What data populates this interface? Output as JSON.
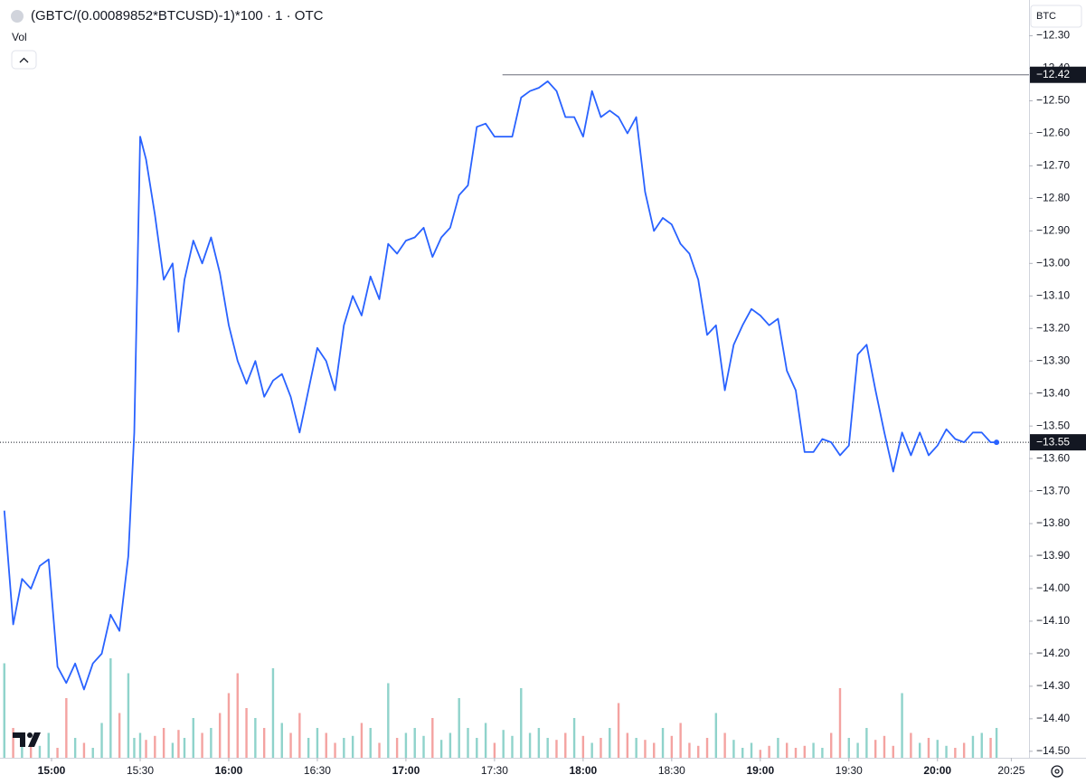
{
  "chart_data": {
    "type": "line",
    "title": "(GBTC/(0.00089852*BTCUSD)-1)*100 · 1 · OTC",
    "volume_label": "Vol",
    "currency": "BTC",
    "color": "#2962ff",
    "x": [
      "14:44",
      "14:47",
      "14:50",
      "14:53",
      "14:56",
      "14:59",
      "15:02",
      "15:05",
      "15:08",
      "15:11",
      "15:14",
      "15:17",
      "15:20",
      "15:23",
      "15:26",
      "15:28",
      "15:30",
      "15:32",
      "15:35",
      "15:38",
      "15:41",
      "15:43",
      "15:45",
      "15:48",
      "15:51",
      "15:54",
      "15:57",
      "16:00",
      "16:03",
      "16:06",
      "16:09",
      "16:12",
      "16:15",
      "16:18",
      "16:21",
      "16:24",
      "16:27",
      "16:30",
      "16:33",
      "16:36",
      "16:39",
      "16:42",
      "16:45",
      "16:48",
      "16:51",
      "16:54",
      "16:57",
      "17:00",
      "17:03",
      "17:06",
      "17:09",
      "17:12",
      "17:15",
      "17:18",
      "17:21",
      "17:24",
      "17:27",
      "17:30",
      "17:33",
      "17:36",
      "17:39",
      "17:42",
      "17:45",
      "17:48",
      "17:51",
      "17:54",
      "17:57",
      "18:00",
      "18:03",
      "18:06",
      "18:09",
      "18:12",
      "18:15",
      "18:18",
      "18:21",
      "18:24",
      "18:27",
      "18:30",
      "18:33",
      "18:36",
      "18:39",
      "18:42",
      "18:45",
      "18:48",
      "18:51",
      "18:54",
      "18:57",
      "19:00",
      "19:03",
      "19:06",
      "19:09",
      "19:12",
      "19:15",
      "19:18",
      "19:21",
      "19:24",
      "19:27",
      "19:30",
      "19:33",
      "19:36",
      "19:39",
      "19:42",
      "19:45",
      "19:48",
      "19:51",
      "19:54",
      "19:57",
      "20:00",
      "20:03",
      "20:06",
      "20:09",
      "20:12",
      "20:15",
      "20:18",
      "20:20"
    ],
    "values": [
      -13.76,
      -14.11,
      -13.97,
      -14.0,
      -13.93,
      -13.91,
      -14.24,
      -14.29,
      -14.23,
      -14.31,
      -14.23,
      -14.2,
      -14.08,
      -14.13,
      -13.9,
      -13.52,
      -12.61,
      -12.68,
      -12.85,
      -13.05,
      -13.0,
      -13.21,
      -13.05,
      -12.93,
      -13.0,
      -12.92,
      -13.03,
      -13.19,
      -13.3,
      -13.37,
      -13.3,
      -13.41,
      -13.36,
      -13.34,
      -13.41,
      -13.52,
      -13.39,
      -13.26,
      -13.3,
      -13.39,
      -13.19,
      -13.1,
      -13.16,
      -13.04,
      -13.11,
      -12.94,
      -12.97,
      -12.93,
      -12.92,
      -12.89,
      -12.98,
      -12.92,
      -12.89,
      -12.79,
      -12.76,
      -12.58,
      -12.57,
      -12.61,
      -12.61,
      -12.61,
      -12.49,
      -12.47,
      -12.46,
      -12.44,
      -12.47,
      -12.55,
      -12.55,
      -12.61,
      -12.47,
      -12.55,
      -12.53,
      -12.55,
      -12.6,
      -12.55,
      -12.78,
      -12.9,
      -12.86,
      -12.88,
      -12.94,
      -12.97,
      -13.05,
      -13.22,
      -13.19,
      -13.39,
      -13.25,
      -13.19,
      -13.14,
      -13.16,
      -13.19,
      -13.17,
      -13.33,
      -13.39,
      -13.58,
      -13.58,
      -13.54,
      -13.55,
      -13.59,
      -13.56,
      -13.28,
      -13.25,
      -13.39,
      -13.52,
      -13.64,
      -13.52,
      -13.59,
      -13.52,
      -13.59,
      -13.56,
      -13.51,
      -13.54,
      -13.55,
      -13.52,
      -13.52,
      -13.55,
      -13.55
    ],
    "volume": {
      "up_color": "#8fd3cb",
      "down_color": "#f4a3a1",
      "values": [
        95,
        30,
        20,
        15,
        12,
        25,
        10,
        60,
        20,
        15,
        10,
        35,
        100,
        45,
        85,
        20,
        25,
        18,
        22,
        30,
        15,
        28,
        20,
        40,
        25,
        30,
        45,
        65,
        85,
        50,
        40,
        30,
        90,
        35,
        25,
        45,
        20,
        30,
        25,
        15,
        20,
        22,
        35,
        30,
        15,
        75,
        20,
        25,
        30,
        22,
        40,
        18,
        25,
        60,
        30,
        20,
        35,
        15,
        28,
        22,
        70,
        25,
        30,
        20,
        18,
        25,
        40,
        22,
        15,
        20,
        30,
        55,
        25,
        20,
        18,
        15,
        30,
        22,
        35,
        15,
        12,
        20,
        45,
        25,
        18,
        10,
        15,
        8,
        12,
        20,
        15,
        10,
        12,
        15,
        10,
        25,
        70,
        20,
        15,
        30,
        18,
        22,
        12,
        65,
        25,
        15,
        20,
        18,
        12,
        10,
        15,
        22,
        25,
        20,
        30
      ]
    },
    "high": {
      "value": -12.42,
      "label": "−12.42"
    },
    "last_price": {
      "value": -13.55,
      "label": "−13.55"
    },
    "xlim": [
      "14:43",
      "20:31"
    ],
    "xticks": [
      "15:00",
      "15:30",
      "16:00",
      "16:30",
      "17:00",
      "17:30",
      "18:00",
      "18:30",
      "19:00",
      "19:30",
      "20:00",
      "20:25"
    ],
    "ylim": [
      -14.52,
      -12.19
    ],
    "yticks": [
      {
        "value": -12.3,
        "label": "−12.30"
      },
      {
        "value": -12.4,
        "label": "−12.40"
      },
      {
        "value": -12.5,
        "label": "−12.50"
      },
      {
        "value": -12.6,
        "label": "−12.60"
      },
      {
        "value": -12.7,
        "label": "−12.70"
      },
      {
        "value": -12.8,
        "label": "−12.80"
      },
      {
        "value": -12.9,
        "label": "−12.90"
      },
      {
        "value": -13.0,
        "label": "−13.00"
      },
      {
        "value": -13.1,
        "label": "−13.10"
      },
      {
        "value": -13.2,
        "label": "−13.20"
      },
      {
        "value": -13.3,
        "label": "−13.30"
      },
      {
        "value": -13.4,
        "label": "−13.40"
      },
      {
        "value": -13.5,
        "label": "−13.50"
      },
      {
        "value": -13.6,
        "label": "−13.60"
      },
      {
        "value": -13.7,
        "label": "−13.70"
      },
      {
        "value": -13.8,
        "label": "−13.80"
      },
      {
        "value": -13.9,
        "label": "−13.90"
      },
      {
        "value": -14.0,
        "label": "−14.00"
      },
      {
        "value": -14.1,
        "label": "−14.10"
      },
      {
        "value": -14.2,
        "label": "−14.20"
      },
      {
        "value": -14.3,
        "label": "−14.30"
      },
      {
        "value": -14.4,
        "label": "−14.40"
      },
      {
        "value": -14.5,
        "label": "−14.50"
      }
    ]
  }
}
